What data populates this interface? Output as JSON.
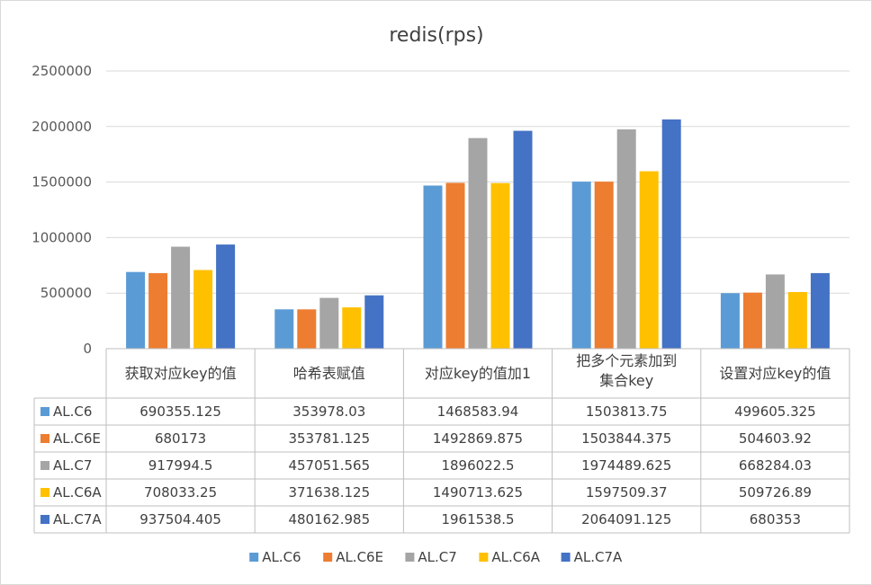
{
  "chart_data": {
    "type": "bar",
    "title": "redis(rps)",
    "xlabel": "",
    "ylabel": "",
    "ylim": [
      0,
      2500000
    ],
    "yticks": [
      0,
      500000,
      1000000,
      1500000,
      2000000,
      2500000
    ],
    "grid": true,
    "legend_position": "bottom",
    "categories": [
      "获取对应key的值",
      "哈希表赋值",
      "对应key的值加1",
      [
        "把多个元素加到",
        "集合key"
      ],
      "设置对应key的值"
    ],
    "series": [
      {
        "name": "AL.C6",
        "color": "#5b9bd5",
        "values": [
          690355.125,
          353978.03,
          1468583.94,
          1503813.75,
          499605.325
        ]
      },
      {
        "name": "AL.C6E",
        "color": "#ed7d31",
        "values": [
          680173,
          353781.125,
          1492869.875,
          1503844.375,
          504603.92
        ]
      },
      {
        "name": "AL.C7",
        "color": "#a5a5a5",
        "values": [
          917994.5,
          457051.565,
          1896022.5,
          1974489.625,
          668284.03
        ]
      },
      {
        "name": "AL.C6A",
        "color": "#ffc000",
        "values": [
          708033.25,
          371638.125,
          1490713.625,
          1597509.37,
          509726.89
        ]
      },
      {
        "name": "AL.C7A",
        "color": "#4472c4",
        "values": [
          937504.405,
          480162.985,
          1961538.5,
          2064091.125,
          680353
        ]
      }
    ],
    "table_cells": [
      [
        "690355.125",
        "353978.03",
        "1468583.94",
        "1503813.75",
        "499605.325"
      ],
      [
        "680173",
        "353781.125",
        "1492869.875",
        "1503844.375",
        "504603.92"
      ],
      [
        "917994.5",
        "457051.565",
        "1896022.5",
        "1974489.625",
        "668284.03"
      ],
      [
        "708033.25",
        "371638.125",
        "1490713.625",
        "1597509.37",
        "509726.89"
      ],
      [
        "937504.405",
        "480162.985",
        "1961538.5",
        "2064091.125",
        "680353"
      ]
    ],
    "ytick_labels": [
      "0",
      "500000",
      "1000000",
      "1500000",
      "2000000",
      "2500000"
    ]
  }
}
